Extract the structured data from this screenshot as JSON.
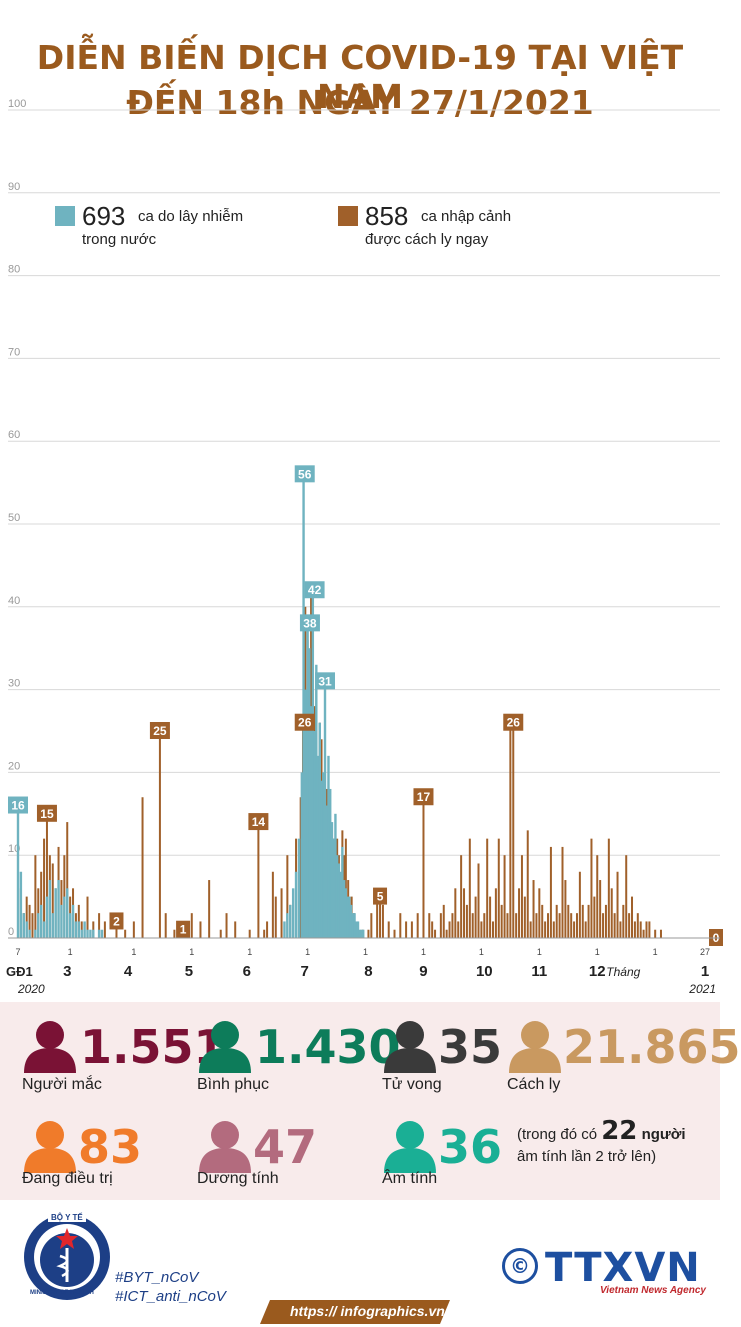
{
  "title": {
    "line1": "DIỄN BIẾN DỊCH COVID-19 TẠI VIỆT NAM",
    "line2": "ĐẾN 18h NGÀY 27/1/2021"
  },
  "colors": {
    "domestic": "#6fb3c0",
    "imported": "#a0602a",
    "title": "#9a5a1e"
  },
  "chart_data": {
    "type": "bar",
    "y_ticks": [
      "0",
      "10",
      "20",
      "30",
      "40",
      "50",
      "60",
      "70",
      "80",
      "90",
      "100"
    ],
    "ylim": [
      0,
      100
    ],
    "legend": [
      {
        "value": "693",
        "text1": "ca do lây nhiễm",
        "text2": "trong nước",
        "color": "#6fb3c0"
      },
      {
        "value": "858",
        "text1": "ca nhập cảnh",
        "text2": "được cách ly ngay",
        "color": "#a0602a"
      }
    ],
    "x_small_labels": [
      {
        "t": "7",
        "x": 0.0
      },
      {
        "t": "1",
        "x": 0.9
      },
      {
        "t": "1",
        "x": 2.0
      },
      {
        "t": "1",
        "x": 3.0
      },
      {
        "t": "1",
        "x": 4.0
      },
      {
        "t": "1",
        "x": 5.0
      },
      {
        "t": "1",
        "x": 6.0
      },
      {
        "t": "1",
        "x": 7.0
      },
      {
        "t": "1",
        "x": 8.0
      },
      {
        "t": "1",
        "x": 9.0
      },
      {
        "t": "1",
        "x": 10.0
      },
      {
        "t": "1",
        "x": 11.0
      },
      {
        "t": "27",
        "x": 11.86
      }
    ],
    "x_month_labels": [
      {
        "t": "GĐ1",
        "x": 0.0
      },
      {
        "t": "3",
        "x": 0.85
      },
      {
        "t": "4",
        "x": 1.9
      },
      {
        "t": "5",
        "x": 2.95
      },
      {
        "t": "6",
        "x": 3.95
      },
      {
        "t": "7",
        "x": 4.95
      },
      {
        "t": "8",
        "x": 6.05
      },
      {
        "t": "9",
        "x": 7.0
      },
      {
        "t": "10",
        "x": 8.05
      },
      {
        "t": "11",
        "x": 9.0
      },
      {
        "t": "12",
        "x": 10.0
      },
      {
        "t": "Tháng",
        "x": 10.45
      },
      {
        "t": "1",
        "x": 11.86
      }
    ],
    "year_start": "2020",
    "year_end": "2021",
    "domestic_labels": [
      {
        "v": 16,
        "x": 0.0
      },
      {
        "v": 56,
        "x": 4.95
      },
      {
        "v": 42,
        "x": 5.12
      },
      {
        "v": 38,
        "x": 5.04
      },
      {
        "v": 31,
        "x": 5.3
      }
    ],
    "imported_labels": [
      {
        "v": 15,
        "x": 0.5
      },
      {
        "v": 2,
        "x": 1.7
      },
      {
        "v": 25,
        "x": 2.45
      },
      {
        "v": 1,
        "x": 2.85
      },
      {
        "v": 14,
        "x": 4.15
      },
      {
        "v": 26,
        "x": 4.95
      },
      {
        "v": 5,
        "x": 6.25
      },
      {
        "v": 17,
        "x": 7.0
      },
      {
        "v": 26,
        "x": 8.55
      },
      {
        "v": 0,
        "x": 12.05
      }
    ],
    "domestic_series": [
      [
        0.0,
        16
      ],
      [
        0.05,
        8
      ],
      [
        0.1,
        3
      ],
      [
        0.15,
        2
      ],
      [
        0.2,
        1
      ],
      [
        0.3,
        1
      ],
      [
        0.35,
        3
      ],
      [
        0.4,
        4
      ],
      [
        0.45,
        2
      ],
      [
        0.5,
        5
      ],
      [
        0.55,
        7
      ],
      [
        0.6,
        3
      ],
      [
        0.65,
        6
      ],
      [
        0.7,
        7
      ],
      [
        0.75,
        4
      ],
      [
        0.8,
        5
      ],
      [
        0.85,
        6
      ],
      [
        0.9,
        3
      ],
      [
        0.95,
        4
      ],
      [
        1.0,
        2
      ],
      [
        1.05,
        2
      ],
      [
        1.1,
        1
      ],
      [
        1.15,
        2
      ],
      [
        1.2,
        1
      ],
      [
        1.25,
        1
      ],
      [
        1.3,
        1
      ],
      [
        1.4,
        1
      ],
      [
        1.45,
        1
      ],
      [
        4.6,
        2
      ],
      [
        4.65,
        3
      ],
      [
        4.7,
        4
      ],
      [
        4.75,
        6
      ],
      [
        4.8,
        8
      ],
      [
        4.85,
        12
      ],
      [
        4.9,
        20
      ],
      [
        4.93,
        56
      ],
      [
        4.96,
        30
      ],
      [
        5.0,
        38
      ],
      [
        5.03,
        35
      ],
      [
        5.06,
        28
      ],
      [
        5.09,
        42
      ],
      [
        5.12,
        25
      ],
      [
        5.15,
        33
      ],
      [
        5.18,
        22
      ],
      [
        5.21,
        26
      ],
      [
        5.24,
        19
      ],
      [
        5.27,
        20
      ],
      [
        5.3,
        31
      ],
      [
        5.33,
        16
      ],
      [
        5.36,
        22
      ],
      [
        5.39,
        18
      ],
      [
        5.42,
        14
      ],
      [
        5.45,
        12
      ],
      [
        5.48,
        15
      ],
      [
        5.51,
        10
      ],
      [
        5.54,
        9
      ],
      [
        5.57,
        8
      ],
      [
        5.6,
        11
      ],
      [
        5.63,
        7
      ],
      [
        5.66,
        6
      ],
      [
        5.69,
        5
      ],
      [
        5.72,
        5
      ],
      [
        5.75,
        4
      ],
      [
        5.78,
        3
      ],
      [
        5.81,
        3
      ],
      [
        5.84,
        2
      ],
      [
        5.87,
        2
      ],
      [
        5.9,
        1
      ],
      [
        5.93,
        1
      ],
      [
        5.96,
        1
      ]
    ],
    "imported_series": [
      [
        0.05,
        6
      ],
      [
        0.1,
        3
      ],
      [
        0.15,
        5
      ],
      [
        0.2,
        4
      ],
      [
        0.25,
        3
      ],
      [
        0.3,
        10
      ],
      [
        0.35,
        6
      ],
      [
        0.4,
        8
      ],
      [
        0.45,
        12
      ],
      [
        0.5,
        15
      ],
      [
        0.55,
        10
      ],
      [
        0.6,
        9
      ],
      [
        0.65,
        6
      ],
      [
        0.7,
        11
      ],
      [
        0.75,
        7
      ],
      [
        0.8,
        10
      ],
      [
        0.85,
        14
      ],
      [
        0.9,
        5
      ],
      [
        0.95,
        6
      ],
      [
        1.0,
        3
      ],
      [
        1.05,
        4
      ],
      [
        1.1,
        2
      ],
      [
        1.2,
        5
      ],
      [
        1.3,
        2
      ],
      [
        1.4,
        3
      ],
      [
        1.5,
        2
      ],
      [
        1.7,
        2
      ],
      [
        1.85,
        1
      ],
      [
        2.0,
        2
      ],
      [
        2.15,
        17
      ],
      [
        2.45,
        25
      ],
      [
        2.55,
        3
      ],
      [
        2.7,
        1
      ],
      [
        2.85,
        1
      ],
      [
        2.9,
        2
      ],
      [
        3.0,
        3
      ],
      [
        3.15,
        2
      ],
      [
        3.3,
        7
      ],
      [
        3.5,
        1
      ],
      [
        3.6,
        3
      ],
      [
        3.75,
        2
      ],
      [
        4.0,
        1
      ],
      [
        4.15,
        14
      ],
      [
        4.25,
        1
      ],
      [
        4.3,
        2
      ],
      [
        4.4,
        8
      ],
      [
        4.45,
        5
      ],
      [
        4.55,
        6
      ],
      [
        4.65,
        10
      ],
      [
        4.7,
        4
      ],
      [
        4.8,
        12
      ],
      [
        4.88,
        17
      ],
      [
        4.92,
        26
      ],
      [
        4.96,
        40
      ],
      [
        5.0,
        36
      ],
      [
        5.03,
        30
      ],
      [
        5.06,
        43
      ],
      [
        5.09,
        35
      ],
      [
        5.12,
        28
      ],
      [
        5.15,
        30
      ],
      [
        5.18,
        20
      ],
      [
        5.21,
        26
      ],
      [
        5.24,
        24
      ],
      [
        5.27,
        14
      ],
      [
        5.3,
        22
      ],
      [
        5.33,
        18
      ],
      [
        5.36,
        19
      ],
      [
        5.39,
        10
      ],
      [
        5.42,
        13
      ],
      [
        5.45,
        12
      ],
      [
        5.48,
        9
      ],
      [
        5.51,
        12
      ],
      [
        5.54,
        10
      ],
      [
        5.57,
        5
      ],
      [
        5.6,
        13
      ],
      [
        5.63,
        10
      ],
      [
        5.66,
        12
      ],
      [
        5.7,
        7
      ],
      [
        5.76,
        5
      ],
      [
        5.8,
        3
      ],
      [
        5.85,
        1
      ],
      [
        5.95,
        1
      ],
      [
        6.05,
        1
      ],
      [
        6.1,
        3
      ],
      [
        6.2,
        5
      ],
      [
        6.25,
        5
      ],
      [
        6.3,
        4
      ],
      [
        6.4,
        2
      ],
      [
        6.5,
        1
      ],
      [
        6.6,
        3
      ],
      [
        6.7,
        2
      ],
      [
        6.8,
        2
      ],
      [
        6.9,
        3
      ],
      [
        7.0,
        17
      ],
      [
        7.1,
        3
      ],
      [
        7.15,
        2
      ],
      [
        7.2,
        1
      ],
      [
        7.3,
        3
      ],
      [
        7.35,
        4
      ],
      [
        7.4,
        1
      ],
      [
        7.45,
        2
      ],
      [
        7.5,
        3
      ],
      [
        7.55,
        6
      ],
      [
        7.6,
        2
      ],
      [
        7.65,
        10
      ],
      [
        7.7,
        6
      ],
      [
        7.75,
        4
      ],
      [
        7.8,
        12
      ],
      [
        7.85,
        3
      ],
      [
        7.9,
        5
      ],
      [
        7.95,
        9
      ],
      [
        8.0,
        2
      ],
      [
        8.05,
        3
      ],
      [
        8.1,
        12
      ],
      [
        8.15,
        5
      ],
      [
        8.2,
        2
      ],
      [
        8.25,
        6
      ],
      [
        8.3,
        12
      ],
      [
        8.35,
        4
      ],
      [
        8.4,
        10
      ],
      [
        8.45,
        3
      ],
      [
        8.5,
        26
      ],
      [
        8.55,
        26
      ],
      [
        8.6,
        3
      ],
      [
        8.65,
        6
      ],
      [
        8.7,
        10
      ],
      [
        8.75,
        5
      ],
      [
        8.8,
        13
      ],
      [
        8.85,
        2
      ],
      [
        8.9,
        7
      ],
      [
        8.95,
        3
      ],
      [
        9.0,
        6
      ],
      [
        9.05,
        4
      ],
      [
        9.1,
        2
      ],
      [
        9.15,
        3
      ],
      [
        9.2,
        11
      ],
      [
        9.25,
        2
      ],
      [
        9.3,
        4
      ],
      [
        9.35,
        3
      ],
      [
        9.4,
        11
      ],
      [
        9.45,
        7
      ],
      [
        9.5,
        4
      ],
      [
        9.55,
        3
      ],
      [
        9.6,
        2
      ],
      [
        9.65,
        3
      ],
      [
        9.7,
        8
      ],
      [
        9.75,
        4
      ],
      [
        9.8,
        2
      ],
      [
        9.85,
        4
      ],
      [
        9.9,
        12
      ],
      [
        9.95,
        5
      ],
      [
        10.0,
        10
      ],
      [
        10.05,
        7
      ],
      [
        10.1,
        3
      ],
      [
        10.15,
        4
      ],
      [
        10.2,
        12
      ],
      [
        10.25,
        6
      ],
      [
        10.3,
        3
      ],
      [
        10.35,
        8
      ],
      [
        10.4,
        2
      ],
      [
        10.45,
        4
      ],
      [
        10.5,
        10
      ],
      [
        10.55,
        3
      ],
      [
        10.6,
        5
      ],
      [
        10.65,
        2
      ],
      [
        10.7,
        3
      ],
      [
        10.75,
        2
      ],
      [
        10.8,
        1
      ],
      [
        10.85,
        2
      ],
      [
        10.9,
        2
      ],
      [
        11.0,
        1
      ],
      [
        11.1,
        1
      ]
    ]
  },
  "stats": {
    "infected": {
      "value": "1.551",
      "label": "Người mắc",
      "color": "#7a1235"
    },
    "recovered": {
      "value": "1.430",
      "label": "Bình phục",
      "color": "#0d7c5a"
    },
    "deaths": {
      "value": "35",
      "label": "Tử vong",
      "color": "#3a3a3a"
    },
    "quarantine": {
      "value": "21.865",
      "label": "Cách ly",
      "color": "#c99960"
    },
    "treating": {
      "value": "83",
      "label": "Đang điều trị",
      "color": "#f07b2a"
    },
    "positive": {
      "value": "47",
      "label": "Dương tính",
      "color": "#b36b7e"
    },
    "negative": {
      "value": "36",
      "label": "Âm tính",
      "color": "#1aaf95"
    },
    "note_pre": "(trong đó có",
    "note_num": "22",
    "note_post": "người",
    "note_line2": "âm tính lần 2 trở lên)"
  },
  "footer": {
    "moh_top": "BỘ Y TẾ",
    "moh_bottom": "MINISTRY OF HEALTH",
    "tag1": "#BYT_nCoV",
    "tag2": "#ICT_anti_nCoV",
    "brand": "TTXVN",
    "brand_sub": "Vietnam News Agency",
    "copyright": "©",
    "url": "https:// infographics.vn"
  }
}
